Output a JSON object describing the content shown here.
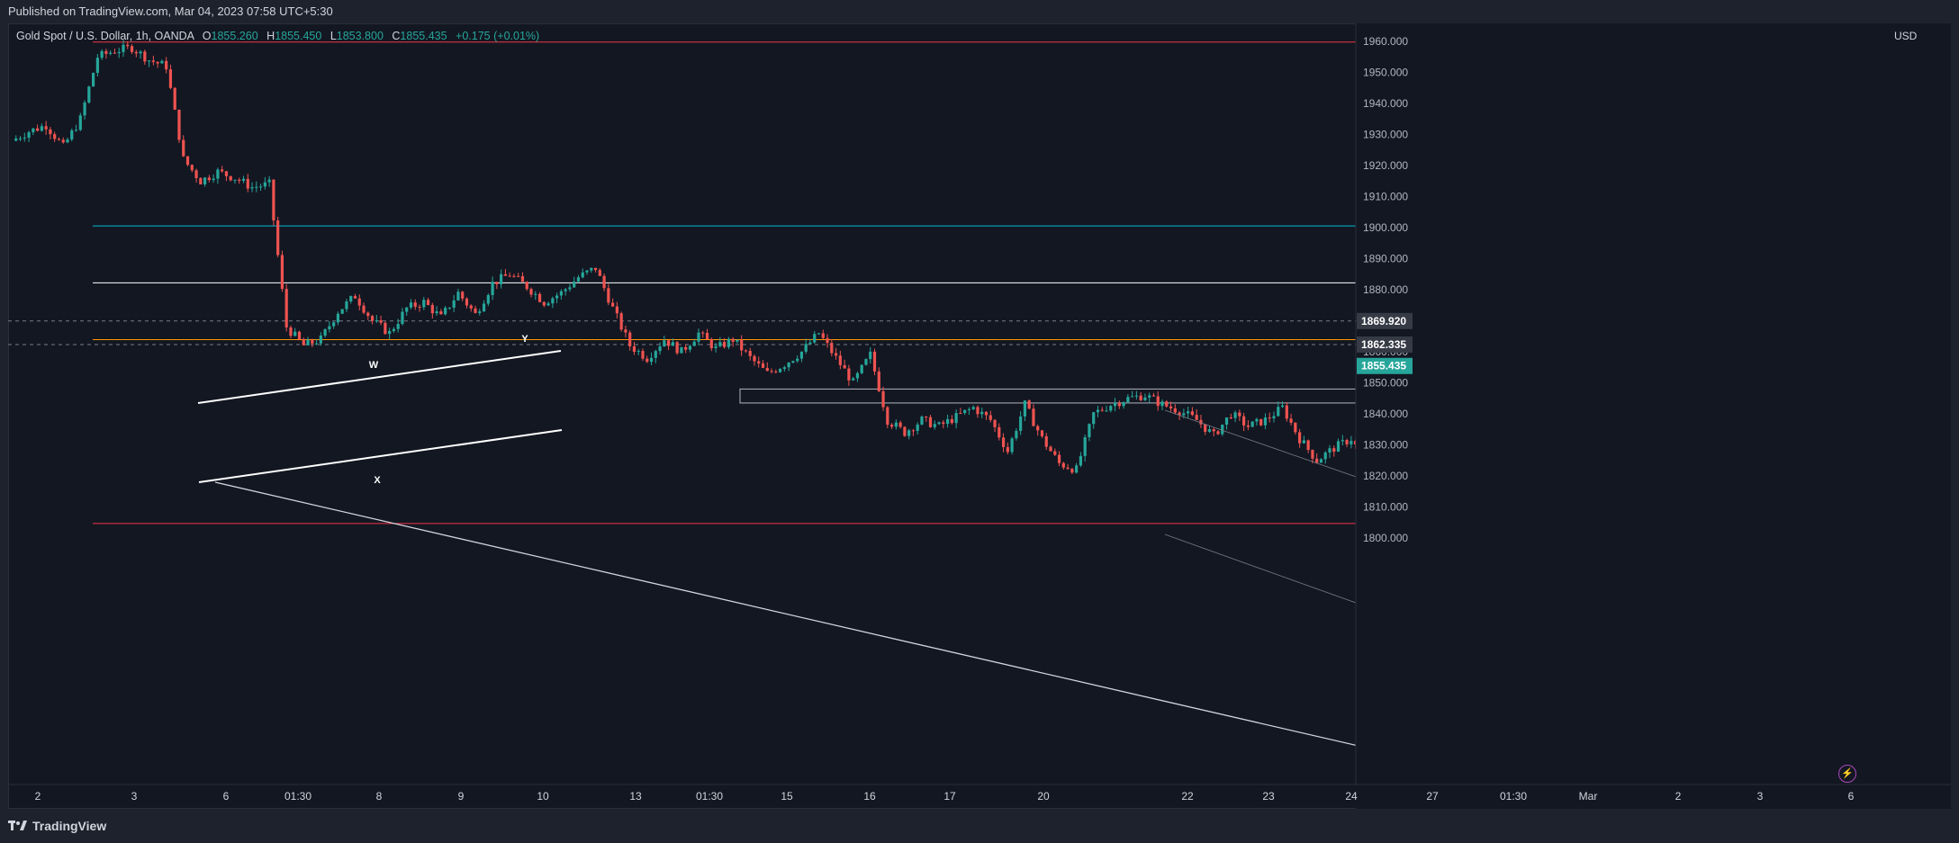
{
  "header": {
    "published": "Published on TradingView.com, Mar 04, 2023 07:58 UTC+5:30"
  },
  "legend": {
    "symbol": "Gold Spot / U.S. Dollar, 1h, OANDA",
    "o_label": "O",
    "o_value": "1855.260",
    "h_label": "H",
    "h_value": "1855.450",
    "l_label": "L",
    "l_value": "1853.800",
    "c_label": "C",
    "c_value": "1855.435",
    "change": "+0.175 (+0.01%)"
  },
  "footer": {
    "brand": "TradingView"
  },
  "colors": {
    "background": "#131722",
    "up": "#26a69a",
    "down": "#ef5350",
    "fib_1": "#f23645",
    "fib_0618": "#00bcd4",
    "fib_05": "#ffffff",
    "fib_0382": "#ff9800",
    "fib_0": "#f23645",
    "last_price": "#26a69a"
  },
  "chart_data": {
    "type": "candlestick",
    "title": "Gold Spot / U.S. Dollar, 1h, OANDA",
    "currency": "USD",
    "ylim": [
      1790,
      1965
    ],
    "yticks": [
      "1800.000",
      "1810.000",
      "1820.000",
      "1830.000",
      "1840.000",
      "1850.000",
      "1860.000",
      "1870.000",
      "1880.000",
      "1890.000",
      "1900.000",
      "1910.000",
      "1920.000",
      "1930.000",
      "1940.000",
      "1950.000",
      "1960.000"
    ],
    "xticks": [
      "2",
      "3",
      "6",
      "01:30",
      "8",
      "9",
      "10",
      "13",
      "01:30",
      "15",
      "16",
      "17",
      "20",
      "22",
      "23",
      "24",
      "27",
      "01:30",
      "Mar",
      "2",
      "3",
      "6"
    ],
    "price_path": [
      [
        0,
        1928
      ],
      [
        1,
        1931
      ],
      [
        2,
        1933
      ],
      [
        3,
        1926
      ],
      [
        4,
        1935
      ],
      [
        5,
        1955
      ],
      [
        6,
        1957
      ],
      [
        7,
        1958
      ],
      [
        8,
        1954
      ],
      [
        9,
        1952
      ],
      [
        10,
        1922
      ],
      [
        11,
        1915
      ],
      [
        12,
        1918
      ],
      [
        13,
        1916
      ],
      [
        14,
        1913
      ],
      [
        15,
        1914
      ],
      [
        16,
        1868
      ],
      [
        17,
        1862
      ],
      [
        18,
        1864
      ],
      [
        19,
        1873
      ],
      [
        20,
        1878
      ],
      [
        21,
        1870
      ],
      [
        22,
        1866
      ],
      [
        23,
        1874
      ],
      [
        24,
        1876
      ],
      [
        25,
        1871
      ],
      [
        26,
        1879
      ],
      [
        27,
        1872
      ],
      [
        28,
        1882
      ],
      [
        29,
        1885
      ],
      [
        30,
        1881
      ],
      [
        31,
        1876
      ],
      [
        32,
        1879
      ],
      [
        33,
        1884
      ],
      [
        34,
        1887
      ],
      [
        35,
        1874
      ],
      [
        36,
        1862
      ],
      [
        37,
        1858
      ],
      [
        38,
        1864
      ],
      [
        39,
        1860
      ],
      [
        40,
        1866
      ],
      [
        41,
        1861
      ],
      [
        42,
        1864
      ],
      [
        43,
        1858
      ],
      [
        44,
        1853
      ],
      [
        45,
        1856
      ],
      [
        46,
        1860
      ],
      [
        47,
        1866
      ],
      [
        48,
        1858
      ],
      [
        49,
        1850
      ],
      [
        50,
        1859
      ],
      [
        51,
        1838
      ],
      [
        52,
        1834
      ],
      [
        53,
        1838
      ],
      [
        54,
        1836
      ],
      [
        55,
        1839
      ],
      [
        56,
        1842
      ],
      [
        57,
        1838
      ],
      [
        58,
        1828
      ],
      [
        59,
        1843
      ],
      [
        60,
        1832
      ],
      [
        61,
        1824
      ],
      [
        62,
        1822
      ],
      [
        63,
        1840
      ],
      [
        64,
        1843
      ],
      [
        65,
        1845
      ],
      [
        66,
        1846
      ],
      [
        67,
        1843
      ],
      [
        68,
        1841
      ],
      [
        69,
        1838
      ],
      [
        70,
        1833
      ],
      [
        71,
        1840
      ],
      [
        72,
        1836
      ],
      [
        73,
        1838
      ],
      [
        74,
        1842
      ],
      [
        75,
        1832
      ],
      [
        76,
        1825
      ],
      [
        77,
        1829
      ],
      [
        78,
        1832
      ],
      [
        79,
        1823
      ],
      [
        80,
        1826
      ],
      [
        81,
        1824
      ],
      [
        82,
        1818
      ],
      [
        83,
        1809
      ],
      [
        84,
        1811
      ],
      [
        85,
        1808
      ],
      [
        86,
        1813
      ],
      [
        87,
        1818
      ],
      [
        88,
        1820
      ],
      [
        89,
        1816
      ],
      [
        90,
        1809
      ],
      [
        91,
        1814
      ],
      [
        92,
        1831
      ],
      [
        93,
        1826
      ],
      [
        94,
        1832
      ],
      [
        95,
        1838
      ],
      [
        96,
        1843
      ],
      [
        97,
        1838
      ],
      [
        98,
        1835
      ],
      [
        99,
        1832
      ],
      [
        100,
        1834
      ],
      [
        101,
        1838
      ],
      [
        102,
        1840
      ],
      [
        103,
        1840
      ],
      [
        104,
        1845
      ],
      [
        105,
        1848
      ],
      [
        106,
        1853
      ],
      [
        107,
        1855.435
      ]
    ],
    "horizontal_levels": [
      {
        "label": "1(1959.770)",
        "value": 1959.77,
        "color_key": "fib_1"
      },
      {
        "label": "0.618(1900.528)",
        "value": 1900.528,
        "color_key": "fib_0618"
      },
      {
        "label": "0.5(1882.228)",
        "value": 1882.228,
        "color_key": "fib_05"
      },
      {
        "label": "0.382(1863.927)",
        "value": 1863.927,
        "color_key": "fib_0382"
      },
      {
        "label": "0(1804.685)",
        "value": 1804.685,
        "color_key": "fib_0"
      }
    ],
    "price_labels": [
      {
        "value": 1869.92,
        "text": "1869.920",
        "style": "dashed"
      },
      {
        "value": 1862.335,
        "text": "1862.335",
        "style": "dashed"
      },
      {
        "value": 1855.435,
        "text": "1855.435",
        "style": "last"
      }
    ],
    "annotations": [
      {
        "text": "W"
      },
      {
        "text": "X"
      },
      {
        "text": "Y"
      }
    ],
    "support_zone": [
      1843.5,
      1848
    ]
  }
}
